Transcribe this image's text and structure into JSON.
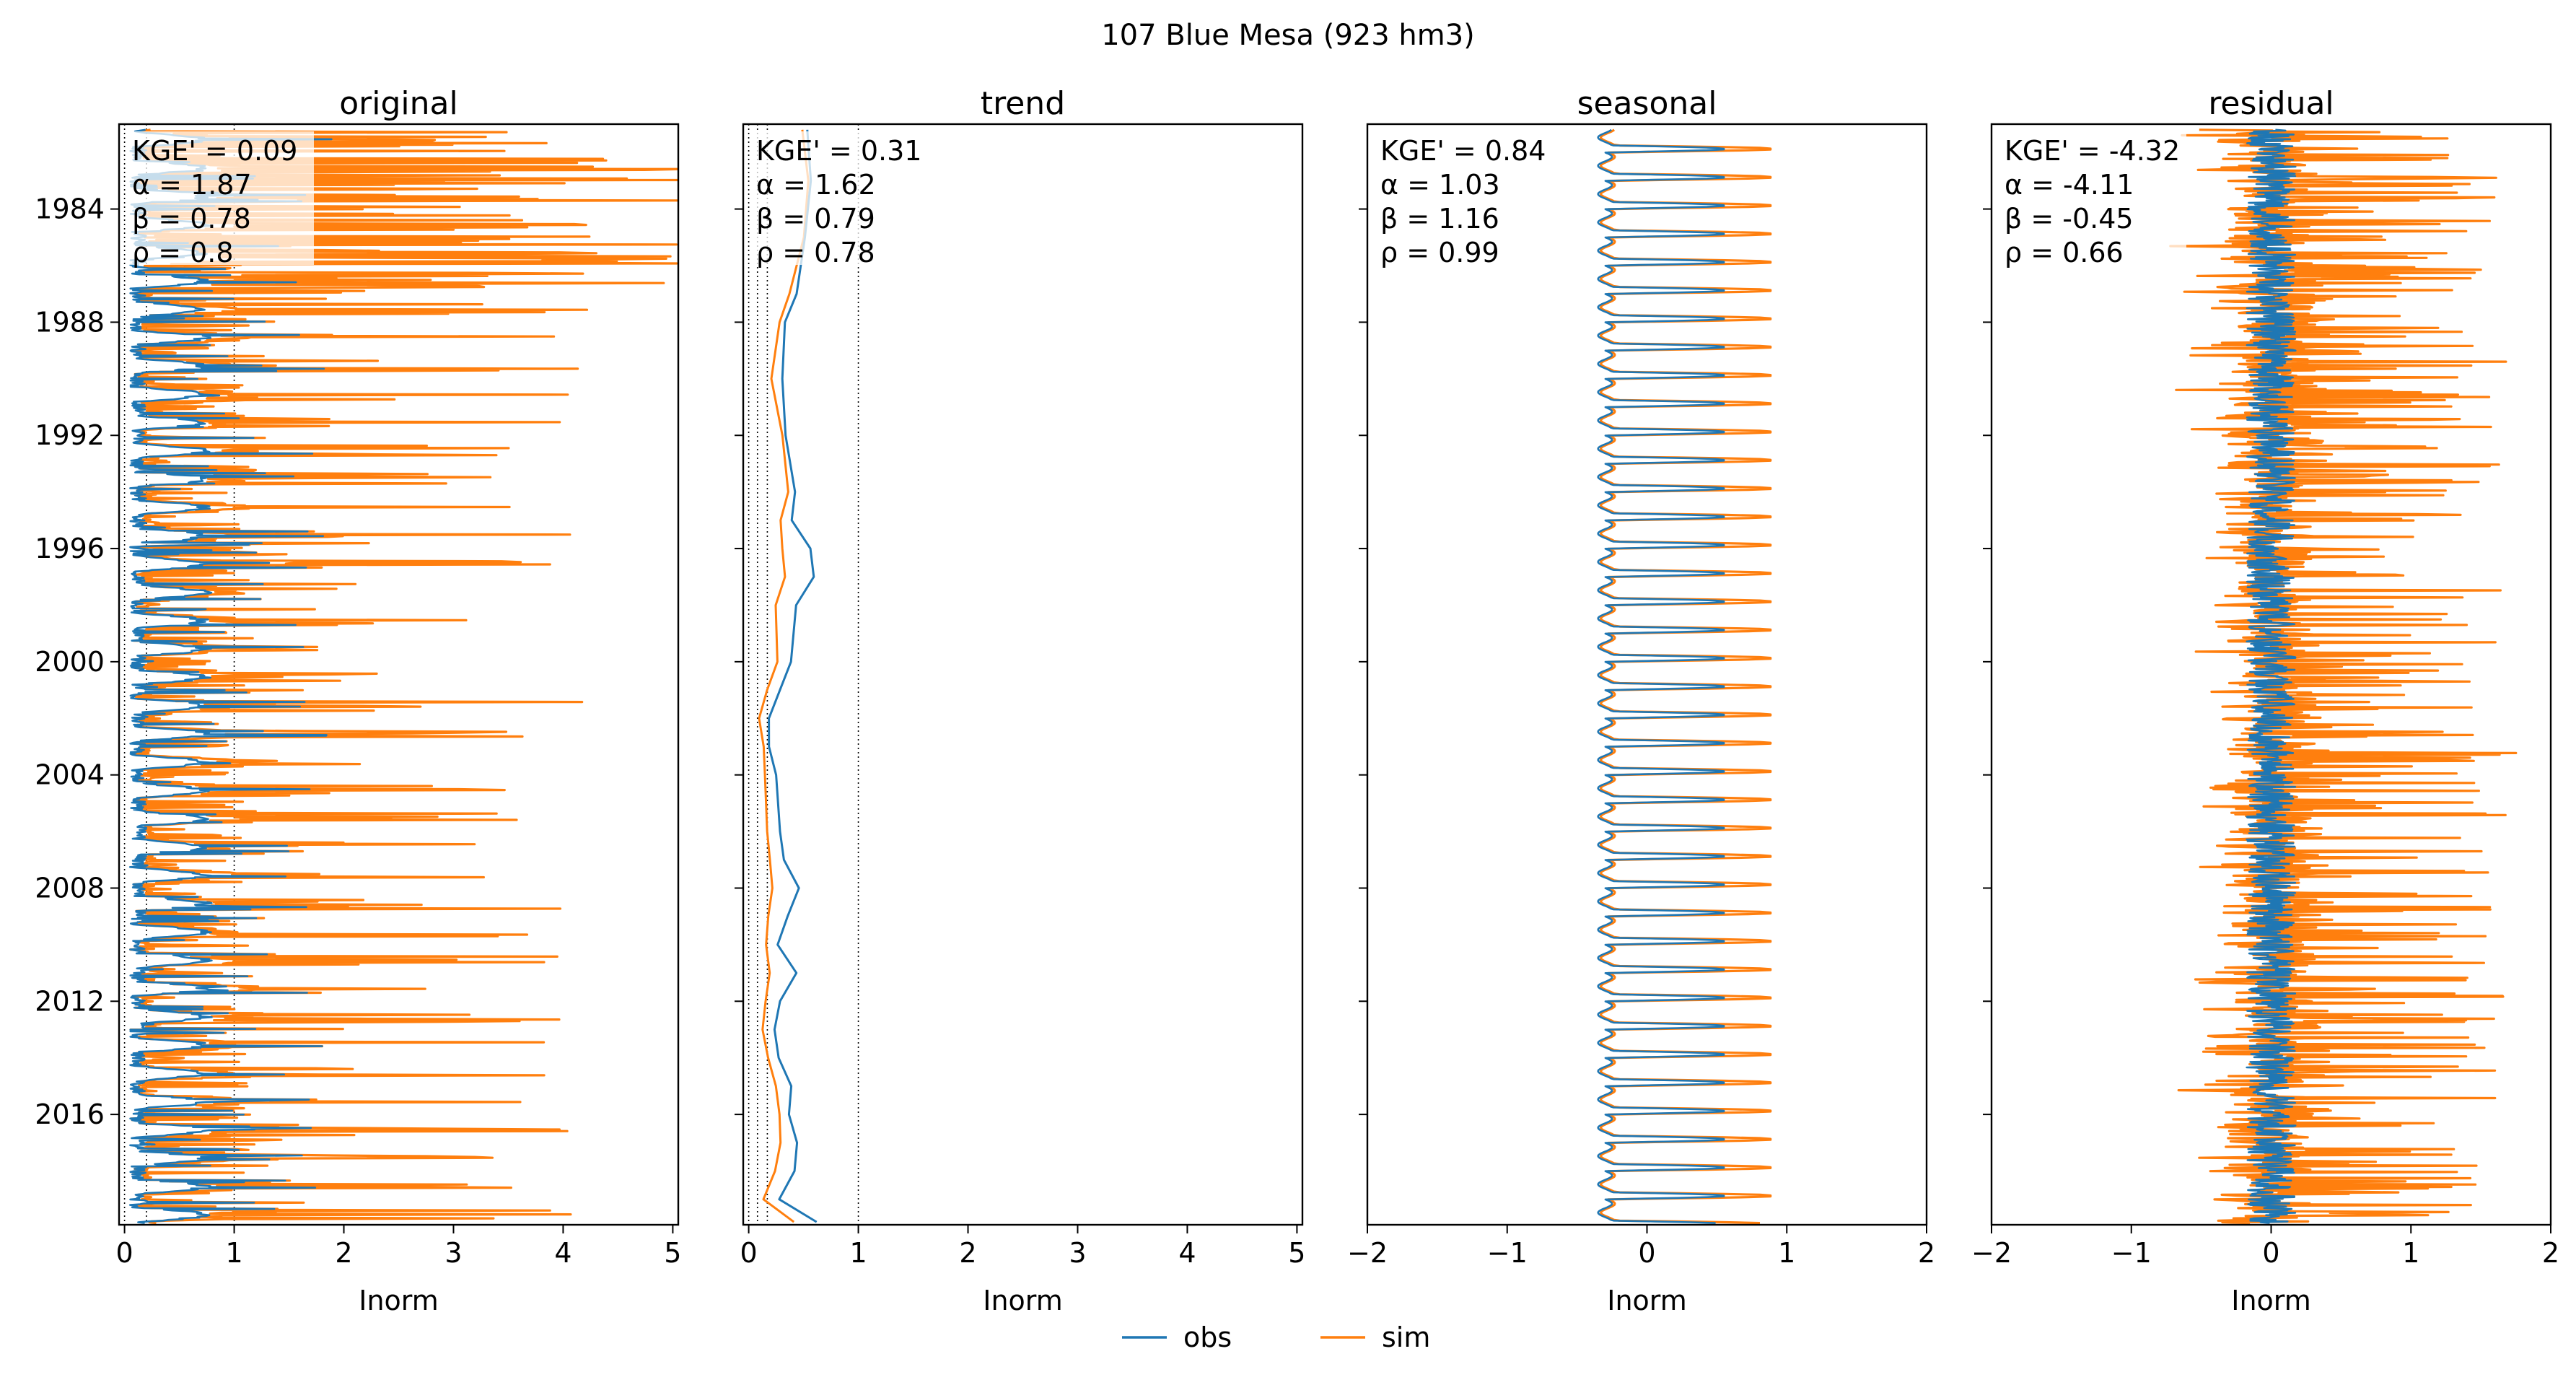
{
  "figure": {
    "suptitle": "107  Blue Mesa (923 hm3)",
    "legend": [
      {
        "name": "obs",
        "color": "#1f77b4"
      },
      {
        "name": "sim",
        "color": "#ff7f0e"
      }
    ],
    "legend_placement": "bottom-center"
  },
  "chart_data": [
    {
      "type": "line",
      "title": "original",
      "xlabel": "Inorm",
      "ylabel": "",
      "xlim": [
        -0.05,
        5.05
      ],
      "ylim": [
        1981.0,
        2019.9
      ],
      "y_inverted": true,
      "xticks": [
        0,
        1,
        2,
        3,
        4,
        5
      ],
      "xtick_labels": [
        "0",
        "1",
        "2",
        "3",
        "4",
        "5"
      ],
      "yticks": [
        1984,
        1988,
        1992,
        1996,
        2000,
        2004,
        2008,
        2012,
        2016
      ],
      "ytick_labels": [
        "1984",
        "1988",
        "1992",
        "1996",
        "2000",
        "2004",
        "2008",
        "2012",
        "2016"
      ],
      "reference_lines_x": [
        0.0,
        0.2,
        1.0
      ],
      "stats": [
        "KGE' = 0.09",
        "α = 1.87",
        "β = 0.78",
        "ρ = 0.8"
      ],
      "series": [
        {
          "name": "obs",
          "color": "#1f77b4",
          "role": "obs"
        },
        {
          "name": "sim",
          "color": "#ff7f0e",
          "role": "sim"
        }
      ]
    },
    {
      "type": "line",
      "title": "trend",
      "xlabel": "Inorm",
      "ylabel": "",
      "xlim": [
        -0.05,
        5.05
      ],
      "ylim": [
        1981.0,
        2019.9
      ],
      "y_inverted": true,
      "xticks": [
        0,
        1,
        2,
        3,
        4,
        5
      ],
      "xtick_labels": [
        "0",
        "1",
        "2",
        "3",
        "4",
        "5"
      ],
      "reference_lines_x": [
        0.0,
        0.08,
        0.17,
        1.0
      ],
      "stats": [
        "KGE' = 0.31",
        "α = 1.62",
        "β = 0.79",
        "ρ = 0.78"
      ],
      "series": [
        {
          "name": "obs",
          "color": "#1f77b4",
          "y": [
            1981.2,
            1983,
            1985,
            1987,
            1988,
            1990,
            1992,
            1994,
            1995,
            1996,
            1997,
            1998,
            2000,
            2001,
            2002,
            2003,
            2004,
            2006,
            2007,
            2008,
            2009,
            2010,
            2011,
            2012,
            2013,
            2014,
            2015,
            2016,
            2017,
            2018,
            2019,
            2019.8
          ],
          "x": [
            0.55,
            0.58,
            0.52,
            0.42,
            0.35,
            0.3,
            0.33,
            0.42,
            0.4,
            0.55,
            0.6,
            0.45,
            0.4,
            0.28,
            0.18,
            0.2,
            0.24,
            0.28,
            0.32,
            0.45,
            0.36,
            0.28,
            0.42,
            0.3,
            0.22,
            0.28,
            0.4,
            0.38,
            0.45,
            0.4,
            0.28,
            0.6
          ]
        },
        {
          "name": "sim",
          "color": "#ff7f0e",
          "y": [
            1981.2,
            1983,
            1985,
            1987,
            1988,
            1990,
            1992,
            1994,
            1995,
            1996,
            1997,
            1998,
            2000,
            2001,
            2002,
            2003,
            2004,
            2006,
            2007,
            2008,
            2009,
            2010,
            2011,
            2012,
            2013,
            2014,
            2015,
            2016,
            2017,
            2018,
            2019,
            2019.8
          ],
          "x": [
            0.5,
            0.55,
            0.5,
            0.38,
            0.3,
            0.22,
            0.3,
            0.35,
            0.3,
            0.3,
            0.32,
            0.25,
            0.28,
            0.15,
            0.1,
            0.12,
            0.15,
            0.18,
            0.2,
            0.22,
            0.18,
            0.15,
            0.2,
            0.14,
            0.12,
            0.16,
            0.25,
            0.28,
            0.3,
            0.22,
            0.12,
            0.4
          ]
        }
      ]
    },
    {
      "type": "line",
      "title": "seasonal",
      "xlabel": "Inorm",
      "ylabel": "",
      "xlim": [
        -2,
        2
      ],
      "ylim": [
        1981.0,
        2019.9
      ],
      "y_inverted": true,
      "xticks": [
        -2,
        -1,
        0,
        1,
        2
      ],
      "xtick_labels": [
        "−2",
        "−1",
        "0",
        "1",
        "2"
      ],
      "stats": [
        "KGE' = 0.84",
        "α = 1.03",
        "β = 1.16",
        "ρ = 0.99"
      ],
      "series": [
        {
          "name": "obs",
          "color": "#1f77b4",
          "role": "obs"
        },
        {
          "name": "sim",
          "color": "#ff7f0e",
          "role": "sim"
        }
      ]
    },
    {
      "type": "line",
      "title": "residual",
      "xlabel": "Inorm",
      "ylabel": "",
      "xlim": [
        -2,
        2
      ],
      "ylim": [
        1981.0,
        2019.9
      ],
      "y_inverted": true,
      "xticks": [
        -2,
        -1,
        0,
        1,
        2
      ],
      "xtick_labels": [
        "−2",
        "−1",
        "0",
        "1",
        "2"
      ],
      "stats": [
        "KGE' = -4.32",
        "α = -4.11",
        "β = -0.45",
        "ρ = 0.66"
      ],
      "series": [
        {
          "name": "obs",
          "color": "#1f77b4",
          "role": "obs"
        },
        {
          "name": "sim",
          "color": "#ff7f0e",
          "role": "sim"
        }
      ]
    }
  ]
}
